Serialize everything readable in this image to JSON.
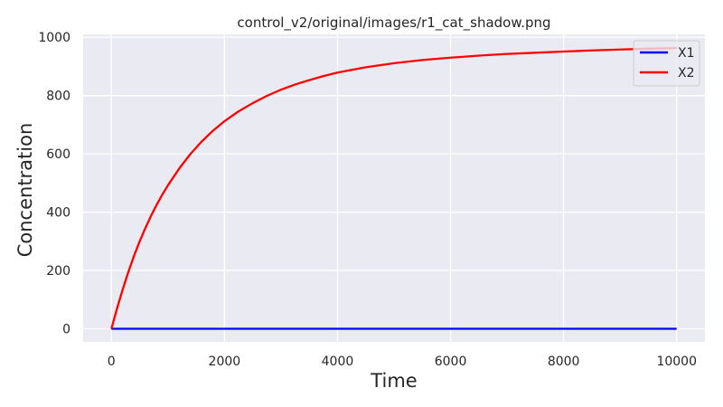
{
  "chart_data": {
    "type": "line",
    "title": "control_v2/original/images/r1_cat_shadow.png",
    "xlabel": "Time",
    "ylabel": "Concentration",
    "xlim": [
      -500,
      10500
    ],
    "ylim": [
      -45,
      1010
    ],
    "xticks": [
      0,
      2000,
      4000,
      6000,
      8000,
      10000
    ],
    "yticks": [
      0,
      200,
      400,
      600,
      800,
      1000
    ],
    "xtick_labels": [
      "0",
      "2000",
      "4000",
      "6000",
      "8000",
      "10000"
    ],
    "ytick_labels": [
      "0",
      "200",
      "400",
      "600",
      "800",
      "1000"
    ],
    "grid": true,
    "background": "#eaeaf2",
    "legend": {
      "placement": "top-right"
    },
    "series": [
      {
        "name": "X1",
        "color": "#0000ff",
        "x": [
          0,
          1000,
          2000,
          3000,
          4000,
          5000,
          6000,
          7000,
          8000,
          9000,
          10000
        ],
        "y": [
          0,
          0,
          0,
          0,
          0,
          0,
          0,
          0,
          0,
          0,
          0
        ]
      },
      {
        "name": "X2",
        "color": "#ff0000",
        "x": [
          0,
          100,
          200,
          300,
          400,
          500,
          600,
          700,
          800,
          900,
          1000,
          1200,
          1400,
          1600,
          1800,
          2000,
          2250,
          2500,
          2750,
          3000,
          3250,
          3500,
          3750,
          4000,
          4500,
          5000,
          5500,
          6000,
          6500,
          7000,
          7500,
          8000,
          8500,
          9000,
          9500,
          10000
        ],
        "y": [
          0,
          70,
          135,
          195,
          250,
          300,
          345,
          387,
          425,
          460,
          492,
          550,
          600,
          643,
          680,
          712,
          746,
          774,
          799,
          820,
          838,
          853,
          867,
          879,
          897,
          911,
          922,
          930,
          937,
          943,
          947,
          951,
          955,
          958,
          961,
          963
        ]
      }
    ]
  }
}
